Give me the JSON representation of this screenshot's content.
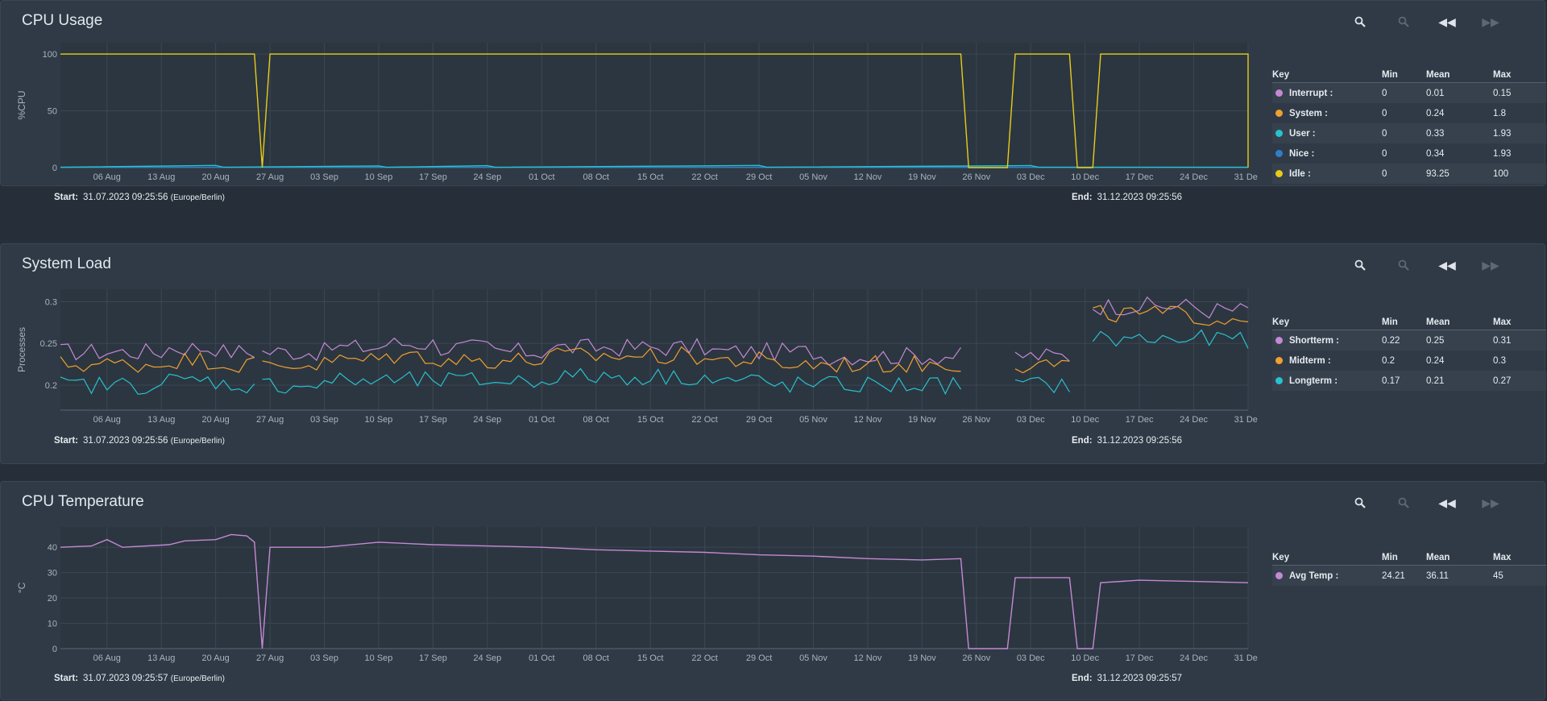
{
  "panels": [
    {
      "id": "cpu-usage",
      "title": "CPU Usage",
      "ylabel": "%CPU",
      "start_label": "Start:",
      "start": "31.07.2023 09:25:56",
      "timezone": "(Europe/Berlin)",
      "end_label": "End:",
      "end": "31.12.2023 09:25:56",
      "toolbar": [
        "zoom-in-icon",
        "zoom-out-icon",
        "pan-back-icon",
        "pan-forward-icon"
      ],
      "legend": {
        "headers": [
          "Key",
          "Min",
          "Mean",
          "Max"
        ],
        "rows": [
          {
            "key": "Interrupt :",
            "color": "#c489d4",
            "min": "0",
            "mean": "0.01",
            "max": "0.15"
          },
          {
            "key": "System :",
            "color": "#f0a030",
            "min": "0",
            "mean": "0.24",
            "max": "1.8"
          },
          {
            "key": "User :",
            "color": "#27c2cf",
            "min": "0",
            "mean": "0.33",
            "max": "1.93"
          },
          {
            "key": "Nice :",
            "color": "#2f7fc8",
            "min": "0",
            "mean": "0.34",
            "max": "1.93"
          },
          {
            "key": "Idle :",
            "color": "#e8cc1a",
            "min": "0",
            "mean": "93.25",
            "max": "100"
          }
        ]
      }
    },
    {
      "id": "system-load",
      "title": "System Load",
      "ylabel": "Processes",
      "start_label": "Start:",
      "start": "31.07.2023 09:25:56",
      "timezone": "(Europe/Berlin)",
      "end_label": "End:",
      "end": "31.12.2023 09:25:56",
      "toolbar": [
        "zoom-in-icon",
        "zoom-out-icon",
        "pan-back-icon",
        "pan-forward-icon"
      ],
      "legend": {
        "headers": [
          "Key",
          "Min",
          "Mean",
          "Max"
        ],
        "rows": [
          {
            "key": "Shortterm :",
            "color": "#c489d4",
            "min": "0.22",
            "mean": "0.25",
            "max": "0.31"
          },
          {
            "key": "Midterm :",
            "color": "#f0a030",
            "min": "0.2",
            "mean": "0.24",
            "max": "0.3"
          },
          {
            "key": "Longterm :",
            "color": "#27c2cf",
            "min": "0.17",
            "mean": "0.21",
            "max": "0.27"
          }
        ]
      }
    },
    {
      "id": "cpu-temperature",
      "title": "CPU Temperature",
      "ylabel": "°C",
      "start_label": "Start:",
      "start": "31.07.2023 09:25:57",
      "timezone": "(Europe/Berlin)",
      "end_label": "End:",
      "end": "31.12.2023 09:25:57",
      "toolbar": [
        "zoom-in-icon",
        "zoom-out-icon",
        "pan-back-icon",
        "pan-forward-icon"
      ],
      "legend": {
        "headers": [
          "Key",
          "Min",
          "Mean",
          "Max"
        ],
        "rows": [
          {
            "key": "Avg Temp :",
            "color": "#c489d4",
            "min": "24.21",
            "mean": "36.11",
            "max": "45"
          }
        ]
      }
    }
  ],
  "chart_data": [
    {
      "type": "line",
      "panel": "cpu-usage",
      "x_ticks": [
        "06 Aug",
        "13 Aug",
        "20 Aug",
        "27 Aug",
        "03 Sep",
        "10 Sep",
        "17 Sep",
        "24 Sep",
        "01 Oct",
        "08 Oct",
        "15 Oct",
        "22 Oct",
        "29 Oct",
        "05 Nov",
        "12 Nov",
        "19 Nov",
        "26 Nov",
        "03 Dec",
        "10 Dec",
        "17 Dec",
        "24 Dec",
        "31 Dec"
      ],
      "y_ticks": [
        0,
        50,
        100
      ],
      "ylim": [
        0,
        110
      ],
      "xlim": [
        "2023-07-31",
        "2023-12-31"
      ],
      "grid": true,
      "series": [
        {
          "name": "Idle :",
          "color": "#e8cc1a",
          "points": [
            [
              "2023-07-31",
              100
            ],
            [
              "2023-08-25",
              100
            ],
            [
              "2023-08-26",
              0
            ],
            [
              "2023-08-27",
              100
            ],
            [
              "2023-11-24",
              100
            ],
            [
              "2023-11-25",
              0
            ],
            [
              "2023-11-30",
              0
            ],
            [
              "2023-12-01",
              100
            ],
            [
              "2023-12-08",
              100
            ],
            [
              "2023-12-09",
              0
            ],
            [
              "2023-12-11",
              0
            ],
            [
              "2023-12-12",
              100
            ],
            [
              "2023-12-31",
              100
            ],
            [
              "2023-12-31",
              0
            ]
          ]
        },
        {
          "name": "User :",
          "color": "#27c2cf",
          "points": [
            [
              "2023-07-31",
              0.3
            ],
            [
              "2023-08-20",
              1.9
            ],
            [
              "2023-08-21",
              0.3
            ],
            [
              "2023-09-10",
              1.5
            ],
            [
              "2023-09-11",
              0.3
            ],
            [
              "2023-09-24",
              1.7
            ],
            [
              "2023-09-25",
              0.3
            ],
            [
              "2023-10-29",
              1.9
            ],
            [
              "2023-10-30",
              0.3
            ],
            [
              "2023-12-03",
              1.8
            ],
            [
              "2023-12-04",
              0.3
            ],
            [
              "2023-12-31",
              0.3
            ]
          ]
        },
        {
          "name": "Nice :",
          "color": "#2f7fc8",
          "points": [
            [
              "2023-07-31",
              0.3
            ],
            [
              "2023-12-31",
              0.3
            ]
          ]
        }
      ]
    },
    {
      "type": "line",
      "panel": "system-load",
      "x_ticks": [
        "06 Aug",
        "13 Aug",
        "20 Aug",
        "27 Aug",
        "03 Sep",
        "10 Sep",
        "17 Sep",
        "24 Sep",
        "01 Oct",
        "08 Oct",
        "15 Oct",
        "22 Oct",
        "29 Oct",
        "05 Nov",
        "12 Nov",
        "19 Nov",
        "26 Nov",
        "03 Dec",
        "10 Dec",
        "17 Dec",
        "24 Dec",
        "31 Dec"
      ],
      "y_ticks": [
        0.2,
        0.25,
        0.3
      ],
      "ylim": [
        0.17,
        0.315
      ],
      "xlim": [
        "2023-07-31",
        "2023-12-31"
      ],
      "grid": true,
      "segments": [
        [
          "2023-07-31",
          "2023-08-25"
        ],
        [
          "2023-08-26",
          "2023-11-24"
        ],
        [
          "2023-12-01",
          "2023-12-08"
        ],
        [
          "2023-12-11",
          "2023-12-31"
        ]
      ],
      "series": [
        {
          "name": "Shortterm :",
          "color": "#c489d4",
          "base": [
            0.24,
            0.24,
            0.245,
            0.24,
            0.24,
            0.245,
            0.25,
            0.245,
            0.24,
            0.245,
            0.245,
            0.245,
            0.24,
            0.24,
            0.235,
            0.235,
            0.235,
            0.235,
            0.235,
            0.295,
            0.295,
            0.29
          ]
        },
        {
          "name": "Midterm :",
          "color": "#f0a030",
          "base": [
            0.225,
            0.225,
            0.23,
            0.225,
            0.225,
            0.23,
            0.235,
            0.23,
            0.23,
            0.235,
            0.235,
            0.235,
            0.23,
            0.225,
            0.225,
            0.225,
            0.225,
            0.225,
            0.225,
            0.285,
            0.285,
            0.28
          ]
        },
        {
          "name": "Longterm :",
          "color": "#27c2cf",
          "base": [
            0.2,
            0.2,
            0.205,
            0.2,
            0.2,
            0.205,
            0.205,
            0.205,
            0.205,
            0.21,
            0.21,
            0.21,
            0.205,
            0.2,
            0.2,
            0.2,
            0.2,
            0.2,
            0.2,
            0.255,
            0.255,
            0.255
          ]
        }
      ]
    },
    {
      "type": "line",
      "panel": "cpu-temperature",
      "x_ticks": [
        "06 Aug",
        "13 Aug",
        "20 Aug",
        "27 Aug",
        "03 Sep",
        "10 Sep",
        "17 Sep",
        "24 Sep",
        "01 Oct",
        "08 Oct",
        "15 Oct",
        "22 Oct",
        "29 Oct",
        "05 Nov",
        "12 Nov",
        "19 Nov",
        "26 Nov",
        "03 Dec",
        "10 Dec",
        "17 Dec",
        "24 Dec",
        "31 Dec"
      ],
      "y_ticks": [
        0,
        10,
        20,
        30,
        40
      ],
      "ylim": [
        0,
        48
      ],
      "xlim": [
        "2023-07-31",
        "2023-12-31"
      ],
      "grid": true,
      "series": [
        {
          "name": "Avg Temp :",
          "color": "#c489d4",
          "points": [
            [
              "2023-07-31",
              40
            ],
            [
              "2023-08-04",
              40.5
            ],
            [
              "2023-08-06",
              43
            ],
            [
              "2023-08-08",
              40
            ],
            [
              "2023-08-14",
              41
            ],
            [
              "2023-08-16",
              42.5
            ],
            [
              "2023-08-20",
              43
            ],
            [
              "2023-08-22",
              45
            ],
            [
              "2023-08-24",
              44.5
            ],
            [
              "2023-08-25",
              42
            ],
            [
              "2023-08-26",
              0
            ],
            [
              "2023-08-27",
              40
            ],
            [
              "2023-09-03",
              40
            ],
            [
              "2023-09-10",
              42
            ],
            [
              "2023-09-17",
              41
            ],
            [
              "2023-09-24",
              40.5
            ],
            [
              "2023-10-01",
              40
            ],
            [
              "2023-10-08",
              39
            ],
            [
              "2023-10-15",
              38.5
            ],
            [
              "2023-10-22",
              38
            ],
            [
              "2023-10-29",
              37
            ],
            [
              "2023-11-05",
              36.5
            ],
            [
              "2023-11-12",
              35.5
            ],
            [
              "2023-11-19",
              35
            ],
            [
              "2023-11-24",
              35.5
            ],
            [
              "2023-11-25",
              0
            ],
            [
              "2023-11-30",
              0
            ],
            [
              "2023-12-01",
              28
            ],
            [
              "2023-12-08",
              28
            ],
            [
              "2023-12-09",
              0
            ],
            [
              "2023-12-11",
              0
            ],
            [
              "2023-12-12",
              26
            ],
            [
              "2023-12-17",
              27
            ],
            [
              "2023-12-24",
              26.5
            ],
            [
              "2023-12-31",
              26
            ]
          ]
        }
      ]
    }
  ]
}
